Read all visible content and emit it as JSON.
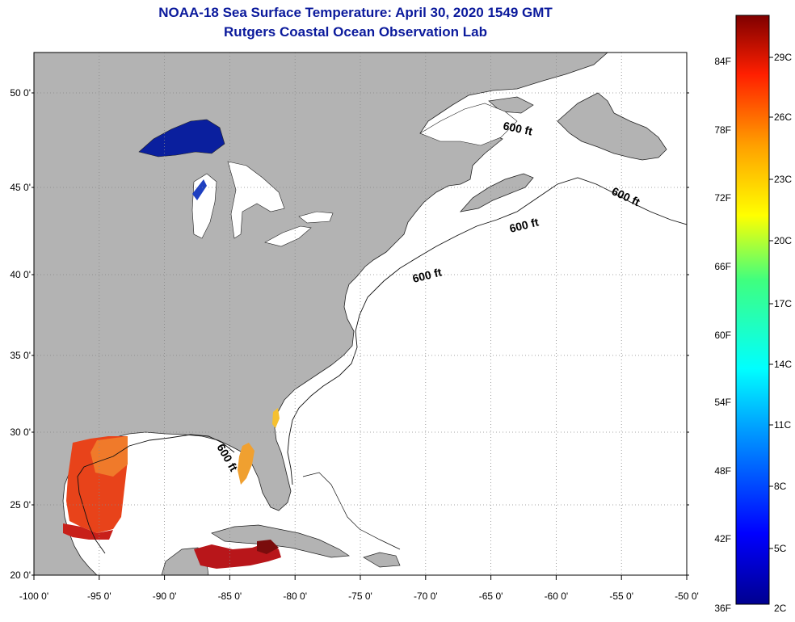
{
  "title": "NOAA-18 Sea Surface Temperature:  April 30, 2020 1549 GMT",
  "subtitle": "Rutgers Coastal Ocean Observation Lab",
  "map": {
    "lon_labels": [
      "-100 0'",
      "-95 0'",
      "-90 0'",
      "-85 0'",
      "-80 0'",
      "-75 0'",
      "-70 0'",
      "-65 0'",
      "-60 0'",
      "-55 0'",
      "-50 0'"
    ],
    "lat_labels": [
      "50 0'",
      "45 0'",
      "40 0'",
      "35 0'",
      "30 0'",
      "25 0'",
      "20 0'"
    ],
    "lon_range": [
      -100,
      -50
    ],
    "lat_range": [
      20,
      52
    ],
    "contour_label": "600 ft",
    "colors": {
      "land": "#b3b3b3",
      "ocean": "#ffffff",
      "title": "#0b1a9c",
      "lake_cold": "#0a1f9e",
      "gulf_warm": "#e8431a"
    }
  },
  "colorbar": {
    "fahrenheit": [
      "84F",
      "78F",
      "72F",
      "66F",
      "60F",
      "54F",
      "48F",
      "42F",
      "36F"
    ],
    "celsius": [
      "29C",
      "26C",
      "23C",
      "20C",
      "17C",
      "14C",
      "11C",
      "8C",
      "5C",
      "2C"
    ]
  }
}
